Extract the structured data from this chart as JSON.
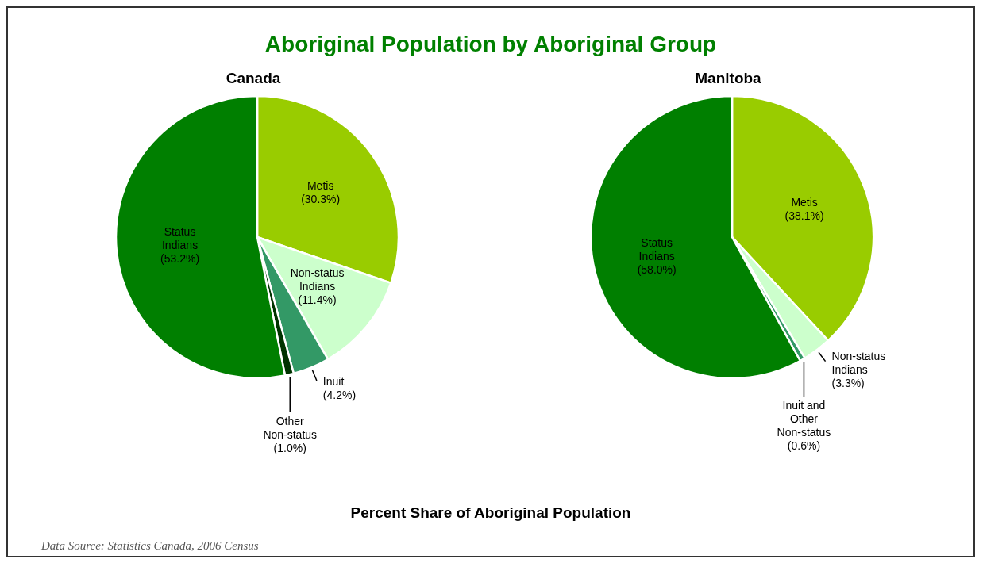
{
  "chart_data": [
    {
      "type": "pie",
      "title": "Aboriginal Population by Aboriginal Group",
      "subtitle": "Canada",
      "categories": [
        "Metis",
        "Non-status Indians",
        "Inuit",
        "Other Non-status",
        "Status Indians"
      ],
      "values": [
        30.3,
        11.4,
        4.2,
        1.0,
        53.2
      ],
      "colors": [
        "#99cc00",
        "#ccffcc",
        "#339966",
        "#003300",
        "#007f00"
      ],
      "value_labels": [
        "(30.3%)",
        "(11.4%)",
        "(4.2%)",
        "(1.0%)",
        "(53.2%)"
      ],
      "legend": false,
      "annotations": [
        "Percent Share of Aboriginal Population",
        "Data Source:  Statistics Canada, 2006 Census"
      ]
    },
    {
      "type": "pie",
      "subtitle": "Manitoba",
      "categories": [
        "Metis",
        "Non-status Indians",
        "Inuit and Other Non-status",
        "Status Indians"
      ],
      "values": [
        38.1,
        3.3,
        0.6,
        58.0
      ],
      "colors": [
        "#99cc00",
        "#ccffcc",
        "#339966",
        "#007f00"
      ],
      "value_labels": [
        "(38.1%)",
        "(3.3%)",
        "(0.6%)",
        "(58.0%)"
      ],
      "legend": false
    }
  ]
}
